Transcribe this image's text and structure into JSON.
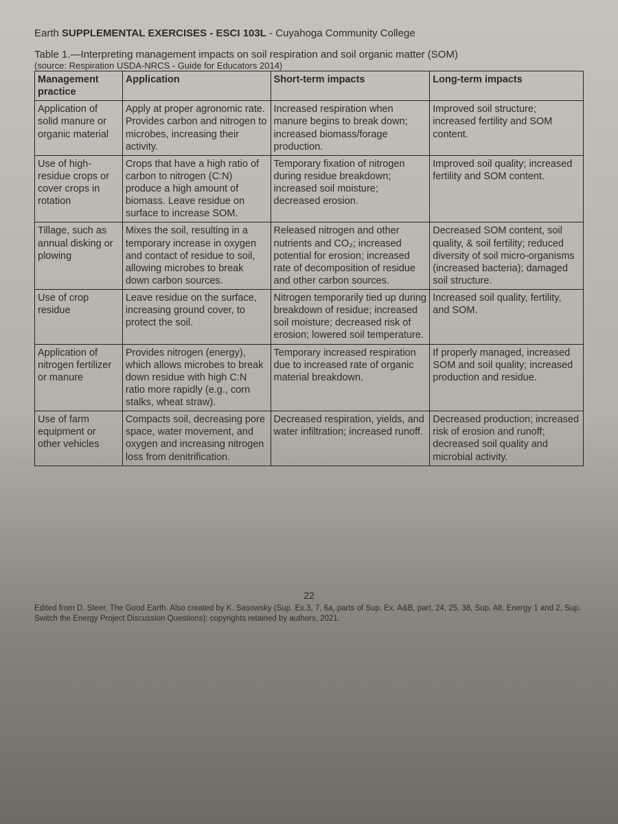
{
  "header": {
    "prefix": "Earth ",
    "bold": "SUPPLEMENTAL EXERCISES - ESCI 103L",
    "suffix": " - Cuyahoga Community College"
  },
  "table_title": "Table 1.—Interpreting management impacts on soil respiration and soil organic matter (SOM)",
  "source": "(source: Respiration USDA-NRCS - Guide for Educators 2014)",
  "columns": [
    "Management practice",
    "Application",
    "Short-term impacts",
    "Long-term impacts"
  ],
  "rows": [
    {
      "practice": "Application of solid manure or organic material",
      "application": "Apply at proper agronomic rate. Provides carbon and nitrogen to microbes, increasing their activity.",
      "short": "Increased respiration when manure begins to break down; increased biomass/forage production.",
      "long": "Improved soil structure; increased fertility and SOM content."
    },
    {
      "practice": "Use of high-residue crops or cover crops in rotation",
      "application": "Crops that have a high ratio of carbon to nitrogen (C:N) produce a high amount of biomass. Leave residue on surface to increase SOM.",
      "short": "Temporary fixation of nitrogen during residue breakdown; increased soil moisture; decreased erosion.",
      "long": "Improved soil quality; increased fertility and SOM content."
    },
    {
      "practice": "Tillage, such as annual disking or plowing",
      "application": "Mixes the soil, resulting in a temporary increase in oxygen and contact of residue to soil, allowing microbes to break down carbon sources.",
      "short": "Released nitrogen and other nutrients and CO₂; increased potential for erosion; increased rate of decomposition of residue and other carbon sources.",
      "long": "Decreased SOM content, soil quality, & soil fertility; reduced diversity of soil micro-organisms (increased bacteria); damaged soil structure."
    },
    {
      "practice": "Use of crop residue",
      "application": "Leave residue on the surface, increasing ground cover, to protect the soil.",
      "short": "Nitrogen temporarily tied up during breakdown of residue; increased soil moisture; decreased risk of erosion; lowered soil temperature.",
      "long": "Increased soil quality, fertility, and SOM."
    },
    {
      "practice": "Application of nitrogen fertilizer or manure",
      "application": "Provides nitrogen (energy), which allows microbes to break down residue with high C:N ratio more rapidly (e.g., corn stalks, wheat straw).",
      "short": "Temporary increased respiration due to increased rate of organic material breakdown.",
      "long": "If properly managed, increased SOM and soil quality; increased production and residue."
    },
    {
      "practice": "Use of farm equipment or other vehicles",
      "application": "Compacts soil, decreasing pore space, water movement, and oxygen and increasing nitrogen loss from denitrification.",
      "short": "Decreased respiration, yields, and water infiltration; increased runoff.",
      "long": "Decreased production; increased risk of erosion and runoff; decreased soil quality and microbial activity."
    }
  ],
  "page_number": "22",
  "footer": "Edited from D. Steer, The Good Earth. Also created by K. Sasowsky (Sup. Ex.3, 7, 6a, parts of Sup. Ex. A&B, part, 24, 25, 38, Sup. Alt. Energy 1 and 2, Sup. Switch the Energy Project Discussion Questions); copyrights retained by authors, 2021."
}
